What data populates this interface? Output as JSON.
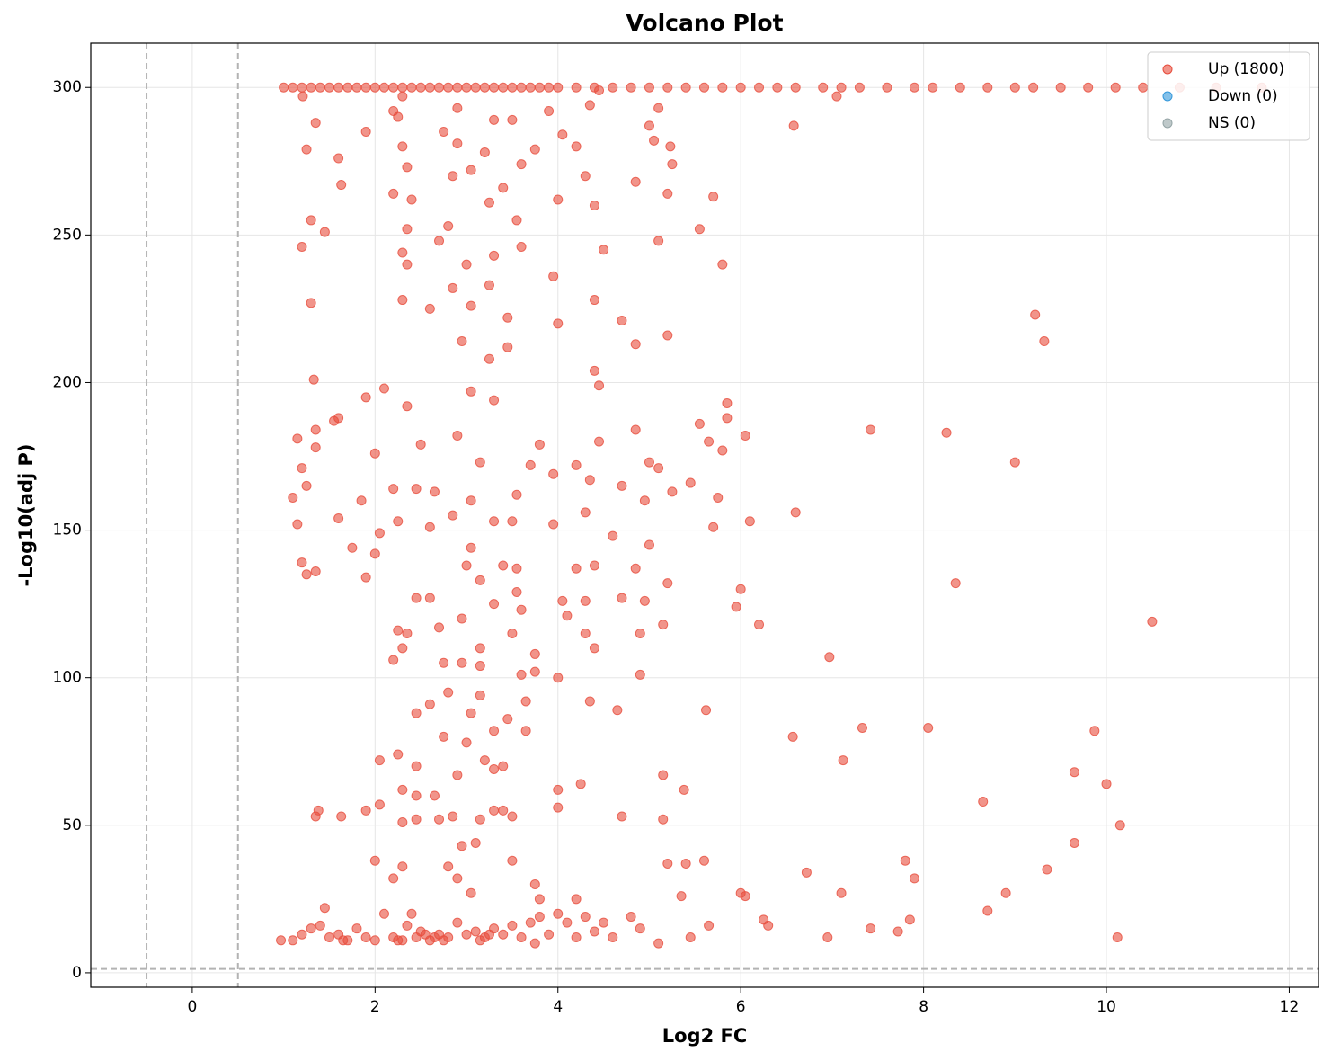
{
  "chart_data": {
    "type": "scatter",
    "title": "Volcano Plot",
    "xlabel": "Log2 FC",
    "ylabel": "-Log10(adj P)",
    "xlim": [
      -1.11,
      12.32
    ],
    "ylim": [
      -4.9,
      315
    ],
    "xticks": [
      0,
      2,
      4,
      6,
      8,
      10,
      12
    ],
    "yticks": [
      0,
      50,
      100,
      150,
      200,
      250,
      300
    ],
    "grid": true,
    "legend": "upper right",
    "thresholds": {
      "x": [
        -0.5,
        0.5
      ],
      "y": 1.3
    },
    "series": [
      {
        "name": "Up (1800)",
        "color": "#e74c3c",
        "x": [
          1.0,
          1.1,
          1.2,
          1.3,
          1.4,
          1.5,
          1.6,
          1.7,
          1.8,
          1.9,
          2.0,
          2.1,
          2.2,
          2.3,
          2.4,
          2.5,
          2.6,
          2.7,
          2.8,
          2.9,
          3.0,
          3.1,
          3.2,
          3.3,
          3.4,
          3.5,
          3.6,
          3.7,
          3.8,
          3.9,
          4.0,
          4.2,
          4.4,
          4.6,
          4.8,
          5.0,
          5.2,
          5.4,
          5.6,
          5.8,
          6.0,
          6.2,
          6.4,
          6.6,
          6.9,
          7.1,
          7.3,
          7.6,
          7.9,
          8.1,
          8.4,
          8.7,
          9.0,
          9.2,
          9.5,
          9.8,
          10.1,
          10.4,
          10.8,
          11.2,
          11.7,
          1.21,
          7.05,
          4.45,
          2.3,
          6.58,
          4.35,
          2.9,
          5.1,
          2.2,
          3.9,
          1.35,
          3.5,
          2.25,
          3.3,
          1.9,
          2.75,
          4.05,
          5.0,
          1.25,
          1.6,
          2.3,
          2.9,
          3.2,
          3.75,
          4.2,
          5.05,
          5.23,
          2.35,
          3.05,
          3.6,
          4.3,
          1.63,
          2.85,
          3.4,
          4.85,
          5.25,
          2.2,
          3.25,
          2.4,
          1.3,
          2.35,
          2.8,
          3.55,
          4.0,
          4.4,
          5.2,
          5.7,
          1.2,
          1.45,
          2.3,
          2.7,
          3.3,
          3.6,
          4.5,
          5.1,
          5.55,
          5.8,
          2.35,
          2.85,
          3.25,
          3.95,
          3.0,
          1.3,
          2.3,
          2.6,
          3.05,
          3.45,
          4.4,
          4.7,
          2.95,
          3.45,
          4.0,
          4.85,
          5.2,
          9.22,
          9.32,
          3.25,
          4.4,
          4.45,
          3.05,
          3.3,
          1.33,
          2.1,
          1.9,
          2.35,
          5.85,
          1.35,
          1.55,
          1.6,
          1.15,
          1.35,
          1.2,
          2.5,
          2.9,
          3.8,
          4.45,
          4.85,
          5.55,
          5.85,
          5.65,
          6.05,
          7.42,
          8.25,
          9.0,
          2.0,
          3.15,
          3.7,
          4.2,
          5.0,
          5.1,
          5.8,
          1.1,
          1.25,
          1.85,
          2.2,
          2.45,
          2.65,
          3.05,
          3.55,
          3.95,
          4.35,
          4.7,
          4.95,
          5.45,
          5.75,
          1.15,
          1.6,
          1.75,
          2.05,
          2.25,
          2.6,
          2.85,
          3.3,
          3.5,
          3.95,
          4.3,
          4.6,
          5.25,
          6.1,
          6.6,
          5.7,
          1.2,
          1.25,
          1.35,
          1.9,
          2.0,
          3.05,
          3.0,
          3.4,
          3.55,
          4.2,
          4.4,
          4.85,
          5.0,
          8.35,
          2.45,
          2.6,
          3.15,
          3.3,
          3.55,
          3.6,
          4.05,
          4.3,
          4.7,
          4.95,
          5.2,
          6.0,
          5.95,
          6.2,
          10.5,
          2.25,
          2.35,
          2.7,
          2.95,
          3.15,
          3.5,
          3.75,
          4.1,
          4.3,
          4.4,
          4.9,
          5.15,
          2.3,
          2.2,
          2.75,
          2.95,
          3.15,
          3.6,
          3.75,
          4.0,
          4.9,
          6.97,
          2.45,
          2.6,
          2.8,
          3.05,
          3.15,
          3.45,
          3.65,
          4.35,
          4.65,
          5.62,
          2.75,
          3.0,
          3.3,
          3.65,
          6.57,
          7.33,
          8.05,
          9.87,
          2.05,
          2.25,
          2.45,
          2.9,
          3.2,
          3.4,
          3.3,
          4.25,
          5.15,
          7.12,
          9.65,
          10.0,
          2.3,
          2.45,
          2.65,
          4.0,
          5.38,
          8.65,
          1.38,
          1.35,
          1.63,
          1.9,
          2.05,
          2.3,
          2.45,
          2.7,
          2.85,
          3.15,
          3.3,
          3.4,
          3.5,
          4.0,
          4.7,
          5.15,
          10.15,
          2.0,
          2.3,
          2.8,
          2.95,
          3.1,
          3.5,
          3.75,
          3.8,
          5.2,
          5.4,
          5.6,
          6.72,
          7.8,
          9.35,
          9.65,
          7.9,
          2.2,
          2.9,
          3.05,
          4.2,
          5.35,
          6.0,
          6.05,
          7.1,
          8.9,
          8.7,
          7.85,
          6.25,
          6.3,
          5.65,
          7.42,
          7.72,
          6.95,
          10.12,
          5.45,
          5.1,
          0.97,
          1.1,
          1.2,
          1.3,
          1.45,
          1.5,
          1.6,
          1.7,
          1.8,
          1.9,
          2.0,
          2.1,
          2.2,
          2.3,
          2.35,
          2.4,
          2.5,
          2.6,
          2.7,
          2.8,
          2.9,
          3.0,
          3.1,
          3.2,
          3.3,
          3.4,
          3.5,
          3.6,
          3.7,
          3.8,
          3.9,
          4.0,
          4.1,
          4.2,
          4.3,
          4.4,
          4.5,
          4.6,
          4.8,
          4.9,
          2.45,
          2.55,
          2.65,
          2.75,
          3.15,
          3.25,
          1.4,
          1.65,
          2.25,
          3.75
        ],
        "values": [
          300,
          300,
          300,
          300,
          300,
          300,
          300,
          300,
          300,
          300,
          300,
          300,
          300,
          300,
          300,
          300,
          300,
          300,
          300,
          300,
          300,
          300,
          300,
          300,
          300,
          300,
          300,
          300,
          300,
          300,
          300,
          300,
          300,
          300,
          300,
          300,
          300,
          300,
          300,
          300,
          300,
          300,
          300,
          300,
          300,
          300,
          300,
          300,
          300,
          300,
          300,
          300,
          300,
          300,
          300,
          300,
          300,
          300,
          300,
          300,
          300,
          297,
          297,
          299,
          297,
          287,
          294,
          293,
          293,
          292,
          292,
          288,
          289,
          290,
          289,
          285,
          285,
          284,
          287,
          279,
          276,
          280,
          281,
          278,
          279,
          280,
          282,
          280,
          273,
          272,
          274,
          270,
          267,
          270,
          266,
          268,
          274,
          264,
          261,
          262,
          255,
          252,
          253,
          255,
          262,
          260,
          264,
          263,
          246,
          251,
          244,
          248,
          243,
          246,
          245,
          248,
          252,
          240,
          240,
          232,
          233,
          236,
          240,
          227,
          228,
          225,
          226,
          222,
          228,
          221,
          214,
          212,
          220,
          213,
          216,
          223,
          214,
          208,
          204,
          199,
          197,
          194,
          201,
          198,
          195,
          192,
          193,
          184,
          187,
          188,
          181,
          178,
          171,
          179,
          182,
          179,
          180,
          184,
          186,
          188,
          180,
          182,
          184,
          183,
          173,
          176,
          173,
          172,
          172,
          173,
          171,
          177,
          161,
          165,
          160,
          164,
          164,
          163,
          160,
          162,
          169,
          167,
          165,
          160,
          166,
          161,
          152,
          154,
          144,
          149,
          153,
          151,
          155,
          153,
          153,
          152,
          156,
          148,
          163,
          153,
          156,
          151,
          139,
          135,
          136,
          134,
          142,
          144,
          138,
          138,
          137,
          137,
          138,
          137,
          145,
          132,
          127,
          127,
          133,
          125,
          129,
          123,
          126,
          126,
          127,
          126,
          132,
          130,
          124,
          118,
          119,
          116,
          115,
          117,
          120,
          110,
          115,
          108,
          121,
          115,
          110,
          115,
          118,
          110,
          106,
          105,
          105,
          104,
          101,
          102,
          100,
          101,
          107,
          88,
          91,
          95,
          88,
          94,
          86,
          92,
          92,
          89,
          89,
          80,
          78,
          82,
          82,
          80,
          83,
          83,
          82,
          72,
          74,
          70,
          67,
          72,
          70,
          69,
          64,
          67,
          72,
          68,
          64,
          62,
          60,
          60,
          62,
          62,
          58,
          55,
          53,
          53,
          55,
          57,
          51,
          52,
          52,
          53,
          52,
          55,
          55,
          53,
          56,
          53,
          52,
          50,
          38,
          36,
          36,
          43,
          44,
          38,
          30,
          25,
          37,
          37,
          38,
          34,
          38,
          35,
          44,
          32,
          32,
          32,
          27,
          25,
          26,
          27,
          26,
          27,
          27,
          21,
          18,
          18,
          16,
          16,
          15,
          14,
          12,
          12,
          12,
          10,
          11,
          11,
          13,
          15,
          22,
          12,
          13,
          11,
          15,
          12,
          11,
          20,
          12,
          11,
          16,
          20,
          14,
          11,
          13,
          12,
          17,
          13,
          14,
          12,
          15,
          13,
          16,
          12,
          17,
          19,
          13,
          20,
          17,
          12,
          19,
          14,
          17,
          12,
          19,
          15,
          12,
          13,
          12,
          11,
          11,
          13,
          16,
          11,
          11,
          10
        ]
      },
      {
        "name": "Down (0)",
        "color": "#3498db",
        "x": [],
        "values": []
      },
      {
        "name": "NS (0)",
        "color": "#95a5a6",
        "x": [],
        "values": []
      }
    ]
  }
}
